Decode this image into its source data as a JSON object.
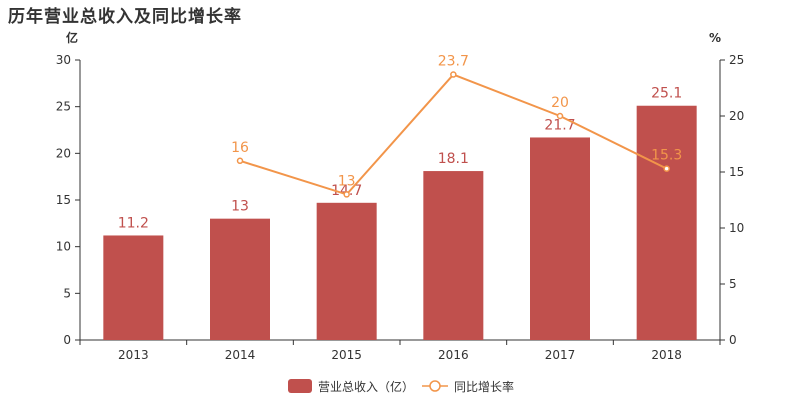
{
  "title": "历年营业总收入及同比增长率",
  "chart_data": {
    "type": "bar",
    "categories": [
      "2013",
      "2014",
      "2015",
      "2016",
      "2017",
      "2018"
    ],
    "left_axis": {
      "unit": "亿",
      "ylim": [
        0,
        30
      ],
      "ticks": [
        0,
        5,
        10,
        15,
        20,
        25,
        30
      ]
    },
    "right_axis": {
      "unit": "%",
      "ylim": [
        0,
        25
      ],
      "ticks": [
        0,
        5,
        10,
        15,
        20,
        25
      ]
    },
    "series": [
      {
        "name": "营业总收入（亿）",
        "type": "bar",
        "axis": "left",
        "color": "#c0504d",
        "values": [
          11.2,
          13,
          14.7,
          18.1,
          21.7,
          25.1
        ],
        "labels": [
          "11.2",
          "13",
          "14.7",
          "18.1",
          "21.7",
          "25.1"
        ]
      },
      {
        "name": "同比增长率",
        "type": "line",
        "axis": "right",
        "color": "#f2954a",
        "values": [
          null,
          16,
          13,
          23.7,
          20,
          15.3
        ],
        "labels": [
          "",
          "16",
          "13",
          "23.7",
          "20",
          "15.3"
        ]
      }
    ],
    "legend_position": "bottom-center",
    "grid": false
  }
}
